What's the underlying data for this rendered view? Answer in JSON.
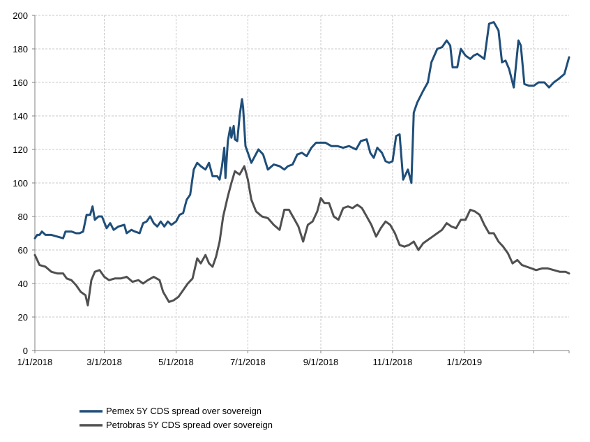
{
  "chart_data": {
    "type": "line",
    "title": "",
    "xlabel": "",
    "ylabel": "",
    "x_start": "2018-01-01",
    "x_end": "2019-03-31",
    "x_ticks": [
      {
        "date": "2018-01-01",
        "label": "1/1/2018"
      },
      {
        "date": "2018-03-01",
        "label": "3/1/2018"
      },
      {
        "date": "2018-05-01",
        "label": "5/1/2018"
      },
      {
        "date": "2018-07-01",
        "label": "7/1/2018"
      },
      {
        "date": "2018-09-01",
        "label": "9/1/2018"
      },
      {
        "date": "2018-11-01",
        "label": "11/1/2018"
      },
      {
        "date": "2019-01-01",
        "label": "1/1/2019"
      },
      {
        "date": "2019-03-01",
        "label": ""
      }
    ],
    "ylim": [
      0,
      200
    ],
    "y_ticks": [
      0,
      20,
      40,
      60,
      80,
      100,
      120,
      140,
      160,
      180,
      200
    ],
    "grid": true,
    "legend_position": "bottom-left",
    "series": [
      {
        "name": "Pemex 5Y CDS spread over sovereign",
        "color": "#1f4e79",
        "points": [
          [
            "2018-01-01",
            67
          ],
          [
            "2018-01-03",
            69
          ],
          [
            "2018-01-05",
            69
          ],
          [
            "2018-01-07",
            71
          ],
          [
            "2018-01-10",
            69
          ],
          [
            "2018-01-15",
            69
          ],
          [
            "2018-01-20",
            68
          ],
          [
            "2018-01-25",
            67
          ],
          [
            "2018-01-27",
            71
          ],
          [
            "2018-02-01",
            71
          ],
          [
            "2018-02-05",
            70
          ],
          [
            "2018-02-08",
            70
          ],
          [
            "2018-02-11",
            71
          ],
          [
            "2018-02-14",
            81
          ],
          [
            "2018-02-17",
            81
          ],
          [
            "2018-02-19",
            86
          ],
          [
            "2018-02-21",
            78
          ],
          [
            "2018-02-24",
            80
          ],
          [
            "2018-02-27",
            80
          ],
          [
            "2018-03-03",
            73
          ],
          [
            "2018-03-06",
            76
          ],
          [
            "2018-03-09",
            72
          ],
          [
            "2018-03-13",
            74
          ],
          [
            "2018-03-18",
            75
          ],
          [
            "2018-03-20",
            70
          ],
          [
            "2018-03-24",
            72
          ],
          [
            "2018-03-27",
            71
          ],
          [
            "2018-03-31",
            70
          ],
          [
            "2018-04-03",
            76
          ],
          [
            "2018-04-06",
            77
          ],
          [
            "2018-04-09",
            80
          ],
          [
            "2018-04-12",
            76
          ],
          [
            "2018-04-15",
            74
          ],
          [
            "2018-04-18",
            77
          ],
          [
            "2018-04-21",
            74
          ],
          [
            "2018-04-24",
            77
          ],
          [
            "2018-04-27",
            75
          ],
          [
            "2018-05-01",
            77
          ],
          [
            "2018-05-04",
            81
          ],
          [
            "2018-05-07",
            82
          ],
          [
            "2018-05-10",
            90
          ],
          [
            "2018-05-13",
            93
          ],
          [
            "2018-05-16",
            108
          ],
          [
            "2018-05-19",
            112
          ],
          [
            "2018-05-22",
            110
          ],
          [
            "2018-05-26",
            108
          ],
          [
            "2018-05-29",
            112
          ],
          [
            "2018-06-01",
            104
          ],
          [
            "2018-06-05",
            104
          ],
          [
            "2018-06-07",
            102
          ],
          [
            "2018-06-09",
            110
          ],
          [
            "2018-06-11",
            121
          ],
          [
            "2018-06-12",
            103
          ],
          [
            "2018-06-14",
            125
          ],
          [
            "2018-06-16",
            133
          ],
          [
            "2018-06-17",
            127
          ],
          [
            "2018-06-19",
            134
          ],
          [
            "2018-06-20",
            126
          ],
          [
            "2018-06-22",
            125
          ],
          [
            "2018-06-24",
            140
          ],
          [
            "2018-06-26",
            150
          ],
          [
            "2018-06-27",
            145
          ],
          [
            "2018-06-29",
            122
          ],
          [
            "2018-07-01",
            118
          ],
          [
            "2018-07-04",
            112
          ],
          [
            "2018-07-07",
            116
          ],
          [
            "2018-07-10",
            120
          ],
          [
            "2018-07-14",
            117
          ],
          [
            "2018-07-18",
            108
          ],
          [
            "2018-07-23",
            111
          ],
          [
            "2018-07-28",
            110
          ],
          [
            "2018-08-01",
            108
          ],
          [
            "2018-08-04",
            110
          ],
          [
            "2018-08-08",
            111
          ],
          [
            "2018-08-12",
            117
          ],
          [
            "2018-08-16",
            118
          ],
          [
            "2018-08-20",
            116
          ],
          [
            "2018-08-24",
            121
          ],
          [
            "2018-08-28",
            124
          ],
          [
            "2018-09-01",
            124
          ],
          [
            "2018-09-05",
            124
          ],
          [
            "2018-09-10",
            122
          ],
          [
            "2018-09-15",
            122
          ],
          [
            "2018-09-20",
            121
          ],
          [
            "2018-09-25",
            122
          ],
          [
            "2018-10-01",
            120
          ],
          [
            "2018-10-05",
            125
          ],
          [
            "2018-10-10",
            126
          ],
          [
            "2018-10-13",
            118
          ],
          [
            "2018-10-16",
            115
          ],
          [
            "2018-10-19",
            121
          ],
          [
            "2018-10-23",
            118
          ],
          [
            "2018-10-26",
            113
          ],
          [
            "2018-10-29",
            112
          ],
          [
            "2018-11-01",
            113
          ],
          [
            "2018-11-04",
            128
          ],
          [
            "2018-11-07",
            129
          ],
          [
            "2018-11-10",
            102
          ],
          [
            "2018-11-14",
            108
          ],
          [
            "2018-11-17",
            100
          ],
          [
            "2018-11-19",
            142
          ],
          [
            "2018-11-22",
            148
          ],
          [
            "2018-11-27",
            155
          ],
          [
            "2018-12-01",
            160
          ],
          [
            "2018-12-04",
            172
          ],
          [
            "2018-12-09",
            180
          ],
          [
            "2018-12-13",
            181
          ],
          [
            "2018-12-17",
            185
          ],
          [
            "2018-12-20",
            182
          ],
          [
            "2018-12-22",
            169
          ],
          [
            "2018-12-26",
            169
          ],
          [
            "2018-12-29",
            180
          ],
          [
            "2019-01-02",
            176
          ],
          [
            "2019-01-06",
            174
          ],
          [
            "2019-01-09",
            176
          ],
          [
            "2019-01-12",
            177
          ],
          [
            "2019-01-18",
            174
          ],
          [
            "2019-01-22",
            195
          ],
          [
            "2019-01-26",
            196
          ],
          [
            "2019-01-30",
            191
          ],
          [
            "2019-02-02",
            172
          ],
          [
            "2019-02-05",
            173
          ],
          [
            "2019-02-08",
            168
          ],
          [
            "2019-02-12",
            157
          ],
          [
            "2019-02-16",
            185
          ],
          [
            "2019-02-18",
            182
          ],
          [
            "2019-02-21",
            159
          ],
          [
            "2019-02-25",
            158
          ],
          [
            "2019-03-01",
            158
          ],
          [
            "2019-03-05",
            160
          ],
          [
            "2019-03-10",
            160
          ],
          [
            "2019-03-14",
            157
          ],
          [
            "2019-03-18",
            160
          ],
          [
            "2019-03-22",
            162
          ],
          [
            "2019-03-27",
            165
          ],
          [
            "2019-03-31",
            175
          ]
        ]
      },
      {
        "name": "Petrobras 5Y CDS spread over sovereign",
        "color": "#505050",
        "points": [
          [
            "2018-01-01",
            57
          ],
          [
            "2018-01-03",
            54
          ],
          [
            "2018-01-05",
            51
          ],
          [
            "2018-01-10",
            50
          ],
          [
            "2018-01-15",
            47
          ],
          [
            "2018-01-20",
            46
          ],
          [
            "2018-01-25",
            46
          ],
          [
            "2018-01-28",
            43
          ],
          [
            "2018-02-01",
            42
          ],
          [
            "2018-02-05",
            39
          ],
          [
            "2018-02-09",
            35
          ],
          [
            "2018-02-13",
            33
          ],
          [
            "2018-02-15",
            27
          ],
          [
            "2018-02-18",
            42
          ],
          [
            "2018-02-21",
            47
          ],
          [
            "2018-02-25",
            48
          ],
          [
            "2018-03-01",
            44
          ],
          [
            "2018-03-05",
            42
          ],
          [
            "2018-03-10",
            43
          ],
          [
            "2018-03-15",
            43
          ],
          [
            "2018-03-20",
            44
          ],
          [
            "2018-03-25",
            41
          ],
          [
            "2018-03-30",
            42
          ],
          [
            "2018-04-03",
            40
          ],
          [
            "2018-04-07",
            42
          ],
          [
            "2018-04-12",
            44
          ],
          [
            "2018-04-17",
            42
          ],
          [
            "2018-04-20",
            35
          ],
          [
            "2018-04-25",
            29
          ],
          [
            "2018-04-29",
            30
          ],
          [
            "2018-05-03",
            32
          ],
          [
            "2018-05-07",
            36
          ],
          [
            "2018-05-11",
            40
          ],
          [
            "2018-05-15",
            43
          ],
          [
            "2018-05-19",
            55
          ],
          [
            "2018-05-22",
            52
          ],
          [
            "2018-05-26",
            57
          ],
          [
            "2018-05-29",
            52
          ],
          [
            "2018-06-01",
            50
          ],
          [
            "2018-06-04",
            56
          ],
          [
            "2018-06-07",
            65
          ],
          [
            "2018-06-10",
            80
          ],
          [
            "2018-06-14",
            92
          ],
          [
            "2018-06-17",
            100
          ],
          [
            "2018-06-20",
            107
          ],
          [
            "2018-06-24",
            105
          ],
          [
            "2018-06-28",
            110
          ],
          [
            "2018-07-01",
            102
          ],
          [
            "2018-07-04",
            90
          ],
          [
            "2018-07-08",
            83
          ],
          [
            "2018-07-13",
            80
          ],
          [
            "2018-07-18",
            79
          ],
          [
            "2018-07-23",
            75
          ],
          [
            "2018-07-28",
            72
          ],
          [
            "2018-08-01",
            84
          ],
          [
            "2018-08-05",
            84
          ],
          [
            "2018-08-09",
            79
          ],
          [
            "2018-08-13",
            74
          ],
          [
            "2018-08-17",
            65
          ],
          [
            "2018-08-21",
            75
          ],
          [
            "2018-08-25",
            77
          ],
          [
            "2018-08-29",
            83
          ],
          [
            "2018-09-01",
            91
          ],
          [
            "2018-09-04",
            88
          ],
          [
            "2018-09-08",
            88
          ],
          [
            "2018-09-12",
            80
          ],
          [
            "2018-09-16",
            78
          ],
          [
            "2018-09-20",
            85
          ],
          [
            "2018-09-24",
            86
          ],
          [
            "2018-09-28",
            85
          ],
          [
            "2018-10-02",
            87
          ],
          [
            "2018-10-06",
            85
          ],
          [
            "2018-10-10",
            80
          ],
          [
            "2018-10-14",
            75
          ],
          [
            "2018-10-18",
            68
          ],
          [
            "2018-10-22",
            73
          ],
          [
            "2018-10-26",
            77
          ],
          [
            "2018-10-30",
            75
          ],
          [
            "2018-11-03",
            70
          ],
          [
            "2018-11-07",
            63
          ],
          [
            "2018-11-11",
            62
          ],
          [
            "2018-11-15",
            63
          ],
          [
            "2018-11-19",
            65
          ],
          [
            "2018-11-23",
            60
          ],
          [
            "2018-11-27",
            64
          ],
          [
            "2018-12-01",
            66
          ],
          [
            "2018-12-05",
            68
          ],
          [
            "2018-12-09",
            70
          ],
          [
            "2018-12-13",
            72
          ],
          [
            "2018-12-17",
            76
          ],
          [
            "2018-12-21",
            74
          ],
          [
            "2018-12-25",
            73
          ],
          [
            "2018-12-29",
            78
          ],
          [
            "2019-01-02",
            78
          ],
          [
            "2019-01-06",
            84
          ],
          [
            "2019-01-10",
            83
          ],
          [
            "2019-01-14",
            81
          ],
          [
            "2019-01-18",
            75
          ],
          [
            "2019-01-22",
            70
          ],
          [
            "2019-01-26",
            70
          ],
          [
            "2019-01-30",
            65
          ],
          [
            "2019-02-03",
            62
          ],
          [
            "2019-02-07",
            58
          ],
          [
            "2019-02-11",
            52
          ],
          [
            "2019-02-15",
            54
          ],
          [
            "2019-02-19",
            51
          ],
          [
            "2019-02-23",
            50
          ],
          [
            "2019-02-27",
            49
          ],
          [
            "2019-03-03",
            48
          ],
          [
            "2019-03-08",
            49
          ],
          [
            "2019-03-13",
            49
          ],
          [
            "2019-03-18",
            48
          ],
          [
            "2019-03-23",
            47
          ],
          [
            "2019-03-28",
            47
          ],
          [
            "2019-03-31",
            46
          ]
        ]
      }
    ]
  }
}
